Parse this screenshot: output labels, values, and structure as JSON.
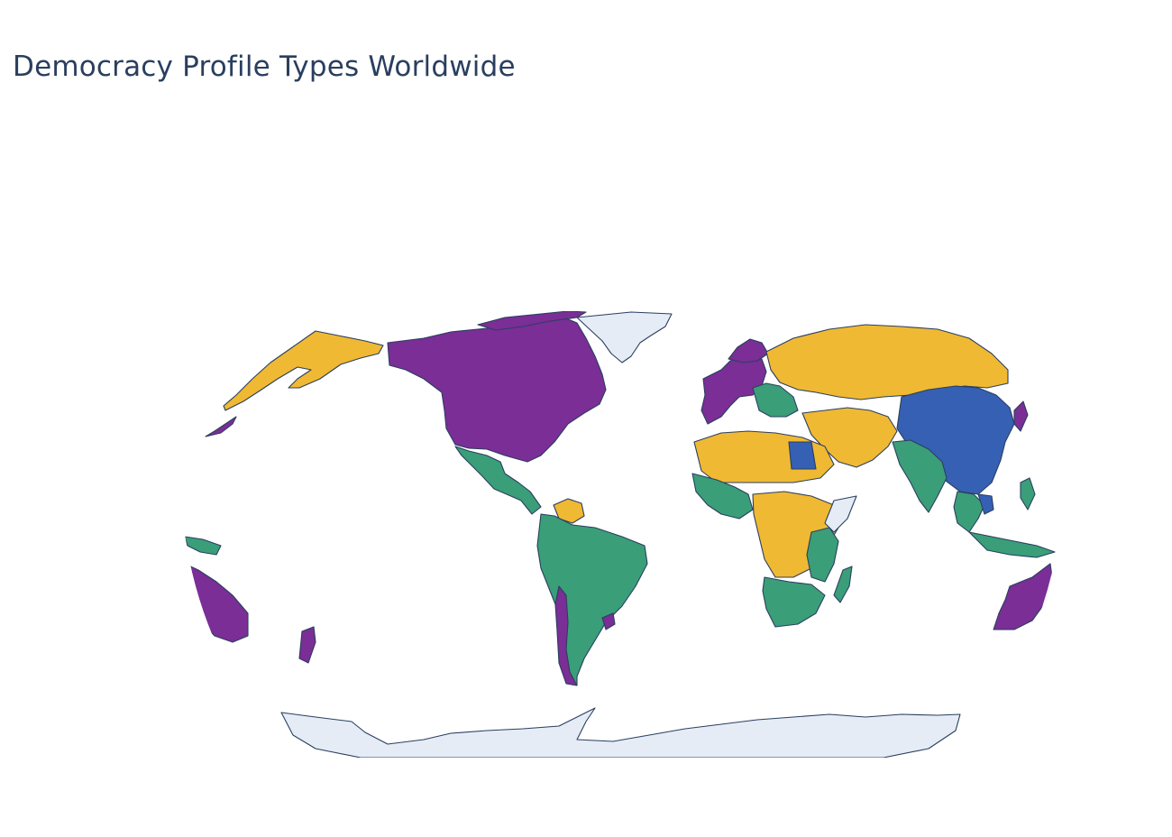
{
  "title": "Democracy Profile Types Worldwide",
  "map": {
    "projection": "robinson",
    "ocean_color": "#ffffff",
    "no_data_color": "#e5ecf6",
    "border_color": "#2a3f5f",
    "category_colors": {
      "purple": "#7a2e96",
      "yellow": "#f0b933",
      "green": "#3a9e79",
      "blue": "#3560b4"
    }
  }
}
